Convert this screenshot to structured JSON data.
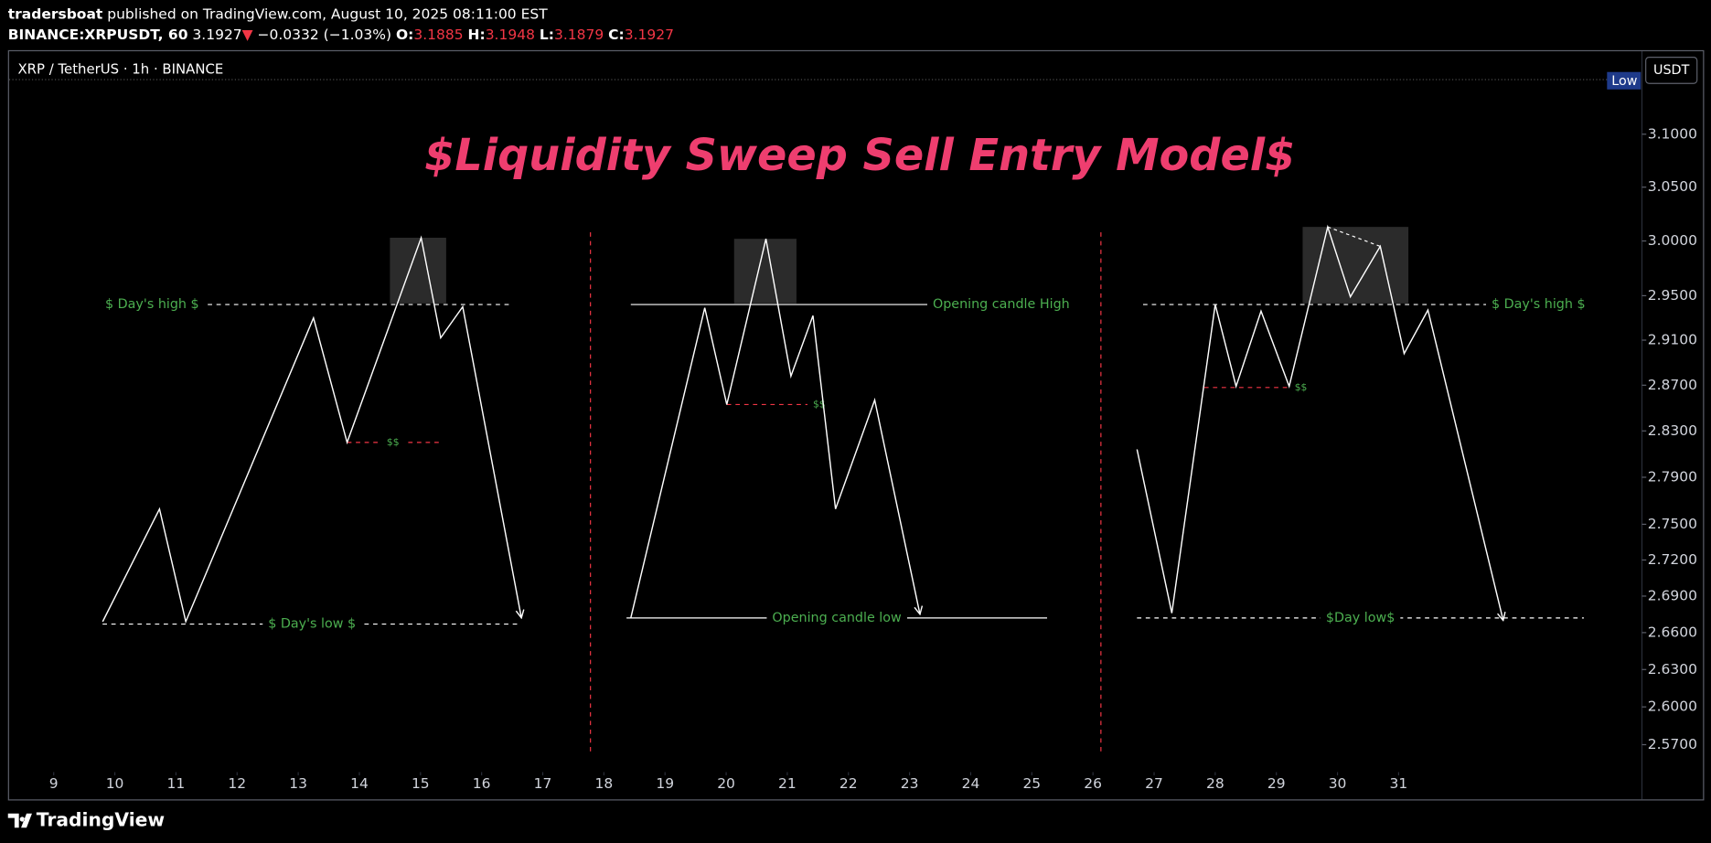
{
  "header": {
    "author": "tradersboat",
    "published": "published on TradingView.com, August 10, 2025 08:11:00 EST",
    "symbol": "BINANCE:XRPUSDT, 60",
    "last": "3.1927",
    "arrow": "▼",
    "change": "−0.0332 (−1.03%)",
    "o_label": "O:",
    "o": "3.1885",
    "h_label": "H:",
    "h": "3.1948",
    "l_label": "L:",
    "l": "3.1879",
    "c_label": "C:",
    "c": "3.1927"
  },
  "chart_data": {
    "type": "line",
    "title": "$Liquidity Sweep Sell Entry Model$",
    "legend": "XRP / TetherUS · 1h · BINANCE",
    "currency": "USDT",
    "badge": "Low",
    "log_scale": true,
    "title_color": "#ee3e6f",
    "xlim": [
      8.27,
      34.98
    ],
    "ylim": [
      2.551,
      3.18
    ],
    "xticks": [
      9,
      10,
      11,
      12,
      13,
      14,
      15,
      16,
      17,
      18,
      19,
      20,
      21,
      22,
      23,
      24,
      25,
      26,
      27,
      28,
      29,
      30,
      31
    ],
    "yticks": [
      {
        "value": 3.1,
        "label": "3.1000"
      },
      {
        "value": 3.05,
        "label": "3.0500"
      },
      {
        "value": 3.0,
        "label": "3.0000"
      },
      {
        "value": 2.95,
        "label": "2.9500"
      },
      {
        "value": 2.91,
        "label": "2.9100"
      },
      {
        "value": 2.87,
        "label": "2.8700"
      },
      {
        "value": 2.83,
        "label": "2.8300"
      },
      {
        "value": 2.79,
        "label": "2.7900"
      },
      {
        "value": 2.75,
        "label": "2.7500"
      },
      {
        "value": 2.72,
        "label": "2.7200"
      },
      {
        "value": 2.69,
        "label": "2.6900"
      },
      {
        "value": 2.66,
        "label": "2.6600"
      },
      {
        "value": 2.63,
        "label": "2.6300"
      },
      {
        "value": 2.6,
        "label": "2.6000"
      },
      {
        "value": 2.57,
        "label": "2.5700"
      }
    ],
    "separators": [
      17.78,
      26.13
    ],
    "separator_color": "#f23645",
    "drawings": [
      {
        "color": "#ffffff",
        "arrow": true,
        "x": [
          9.8,
          10.73,
          11.16,
          13.25,
          13.8,
          15.01,
          15.33,
          15.69,
          16.65
        ],
        "y": [
          2.669,
          2.763,
          2.669,
          2.93,
          2.82,
          3.003,
          2.912,
          2.94,
          2.672
        ],
        "box": {
          "x": [
            14.5,
            15.42
          ],
          "y": [
            2.943,
            3.003
          ]
        },
        "levels": [
          {
            "label": "$ Day's high $",
            "y": 2.942,
            "x": [
              11.52,
              16.51
            ],
            "style": "dashed",
            "color": "#ffffff",
            "label_color": "#4caf50",
            "label_at": "before"
          },
          {
            "label": "$ Day's low $",
            "y": 2.667,
            "x": [
              9.8,
              16.65
            ],
            "style": "dashed",
            "color": "#ffffff",
            "label_color": "#4caf50",
            "label_at": "middle"
          },
          {
            "label": "$$",
            "y": 2.82,
            "x": [
              13.8,
              15.3
            ],
            "style": "dashed",
            "color": "#f23645",
            "label_color": "#4caf50",
            "label_at": "middle"
          }
        ]
      },
      {
        "color": "#ffffff",
        "arrow": true,
        "x": [
          18.44,
          19.65,
          20.01,
          20.65,
          21.06,
          21.42,
          21.79,
          22.43,
          23.17
        ],
        "y": [
          2.672,
          2.939,
          2.853,
          3.002,
          2.878,
          2.932,
          2.763,
          2.857,
          2.675
        ],
        "box": {
          "x": [
            20.13,
            21.15
          ],
          "y": [
            2.943,
            3.002
          ]
        },
        "levels": [
          {
            "label": "Opening candle High",
            "y": 2.942,
            "x": [
              18.44,
              23.29
            ],
            "style": "solid",
            "color": "#ffffff",
            "label_color": "#4caf50",
            "label_at": "after"
          },
          {
            "label": "Opening candle low",
            "y": 2.672,
            "x": [
              18.37,
              25.25
            ],
            "style": "solid",
            "color": "#ffffff",
            "label_color": "#4caf50",
            "label_at": "middle"
          },
          {
            "label": "$$",
            "y": 2.853,
            "x": [
              20.01,
              21.33
            ],
            "style": "dashed",
            "color": "#f23645",
            "label_color": "#4caf50",
            "label_at": "after"
          }
        ]
      },
      {
        "color": "#ffffff",
        "arrow": true,
        "x": [
          26.72,
          27.29,
          28.0,
          28.34,
          28.75,
          29.21,
          29.84,
          30.21,
          30.7,
          31.09,
          31.48,
          32.71
        ],
        "y": [
          2.814,
          2.676,
          2.942,
          2.869,
          2.936,
          2.869,
          3.013,
          2.949,
          2.995,
          2.898,
          2.937,
          2.67
        ],
        "box": {
          "x": [
            29.43,
            31.16
          ],
          "y": [
            2.943,
            3.013
          ]
        },
        "segments": [
          {
            "x": [
              29.84,
              30.7
            ],
            "y": [
              3.013,
              2.995
            ]
          }
        ],
        "levels": [
          {
            "label": "$ Day's high $",
            "y": 2.942,
            "x": [
              26.82,
              32.43
            ],
            "style": "dashed",
            "color": "#ffffff",
            "label_color": "#4caf50",
            "label_at": "after"
          },
          {
            "label": "$Day low$",
            "y": 2.672,
            "x": [
              26.72,
              34.03
            ],
            "style": "dashed",
            "color": "#ffffff",
            "label_color": "#4caf50",
            "label_at": "middle"
          },
          {
            "label": "$$",
            "y": 2.868,
            "x": [
              27.82,
              29.21
            ],
            "style": "dashed",
            "color": "#f23645",
            "label_color": "#4caf50",
            "label_at": "after"
          }
        ]
      }
    ]
  },
  "footer": {
    "brand": "TradingView"
  }
}
